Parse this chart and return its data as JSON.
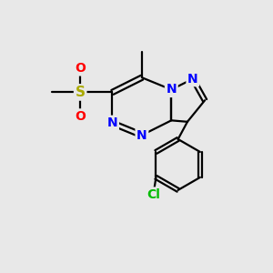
{
  "background_color": "#e8e8e8",
  "bond_color": "#000000",
  "bond_width": 1.6,
  "atom_colors": {
    "N": "#0000ff",
    "S": "#aaaa00",
    "O": "#ff0000",
    "Cl": "#00bb00",
    "C": "#000000"
  }
}
